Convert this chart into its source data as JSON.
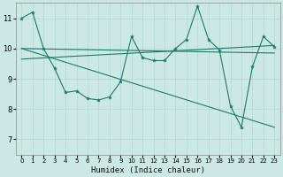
{
  "xlabel": "Humidex (Indice chaleur)",
  "xlim": [
    -0.5,
    23.5
  ],
  "ylim": [
    6.5,
    11.5
  ],
  "xticks": [
    0,
    1,
    2,
    3,
    4,
    5,
    6,
    7,
    8,
    9,
    10,
    11,
    12,
    13,
    14,
    15,
    16,
    17,
    18,
    19,
    20,
    21,
    22,
    23
  ],
  "yticks": [
    7,
    8,
    9,
    10,
    11
  ],
  "background_color": "#cce8e4",
  "grid_color": "#b0d8d0",
  "line_color": "#1a7a6a",
  "line1_x": [
    0,
    1,
    2,
    3,
    4,
    5,
    6,
    7,
    8,
    9,
    10,
    11,
    12,
    13,
    14,
    15,
    16,
    17,
    18,
    19,
    20,
    21,
    22,
    23
  ],
  "line1_y": [
    11.0,
    11.2,
    10.0,
    9.35,
    8.55,
    8.6,
    8.35,
    8.3,
    8.4,
    8.9,
    10.4,
    9.7,
    9.6,
    9.6,
    10.0,
    10.3,
    11.4,
    10.3,
    9.95,
    8.1,
    7.4,
    9.4,
    10.4,
    10.05
  ],
  "line2_x": [
    0,
    23
  ],
  "line2_y": [
    10.0,
    7.4
  ],
  "line3_x": [
    0,
    23
  ],
  "line3_y": [
    10.0,
    9.85
  ],
  "line4_x": [
    0,
    23
  ],
  "line4_y": [
    9.65,
    10.1
  ],
  "xtick_fontsize": 5.0,
  "ytick_fontsize": 6.0,
  "xlabel_fontsize": 6.5
}
